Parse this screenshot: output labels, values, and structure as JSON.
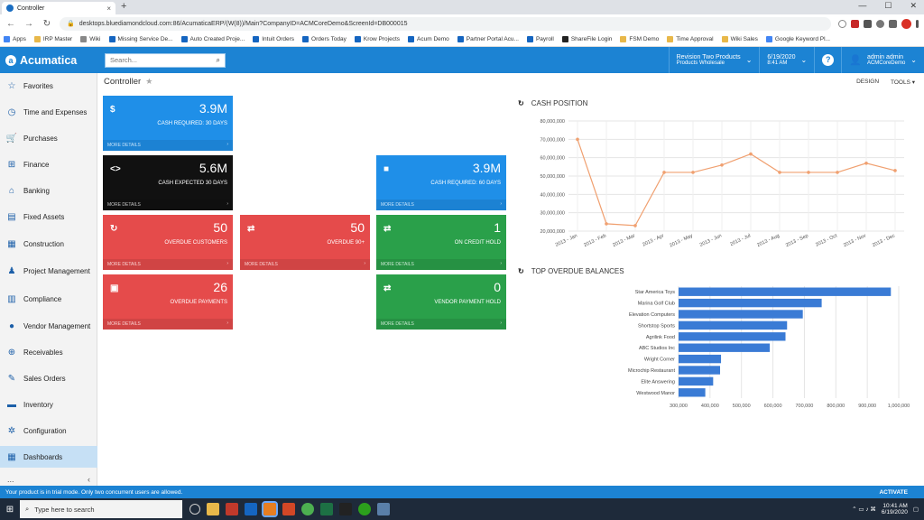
{
  "browser": {
    "tab_title": "Controller",
    "new_tab": "+",
    "address": "desktops.bluediamondcloud.com:86/AcumaticaERP/(W(8))/Main?CompanyID=ACMCoreDemo&ScreenId=DB000015",
    "bookmarks": [
      "Apps",
      "IRP Master",
      "Wiki",
      "Missing Service De...",
      "Auto Created Proje...",
      "Intuit Orders",
      "Orders Today",
      "Krow Projects",
      "Acum Demo",
      "Partner Portal Acu...",
      "Payroll",
      "ShareFile Login",
      "FSM Demo",
      "Time Approval",
      "Wiki Sales",
      "Google Keyword Pl..."
    ]
  },
  "header": {
    "logo": "Acumatica",
    "search_placeholder": "Search...",
    "company_line1": "Revision Two Products",
    "company_line2": "Products Wholesale",
    "date": "6/19/2020",
    "time": "8:41 AM",
    "help": "?",
    "user_name": "admin admin",
    "user_company": "ACMCoreDemo"
  },
  "sidebar": {
    "items": [
      {
        "label": "Favorites",
        "icon": "☆"
      },
      {
        "label": "Time and Expenses",
        "icon": "◷"
      },
      {
        "label": "Purchases",
        "icon": "🛒"
      },
      {
        "label": "Finance",
        "icon": "⊞"
      },
      {
        "label": "Banking",
        "icon": "⌂"
      },
      {
        "label": "Fixed Assets",
        "icon": "▤"
      },
      {
        "label": "Construction",
        "icon": "▦"
      },
      {
        "label": "Project Management",
        "icon": "♟"
      },
      {
        "label": "Compliance",
        "icon": "▥"
      },
      {
        "label": "Vendor Management",
        "icon": "●"
      },
      {
        "label": "Receivables",
        "icon": "⊕"
      },
      {
        "label": "Sales Orders",
        "icon": "✎"
      },
      {
        "label": "Inventory",
        "icon": "▬"
      },
      {
        "label": "Configuration",
        "icon": "✲"
      },
      {
        "label": "Dashboards",
        "icon": "▦"
      }
    ],
    "more": "...",
    "collapse": "‹"
  },
  "page": {
    "title": "Controller",
    "design": "DESIGN",
    "tools": "TOOLS ▾"
  },
  "tiles": [
    {
      "icon": "$",
      "value": "3.9M",
      "label": "CASH REQUIRED: 30 DAYS",
      "footer": "MORE DETAILS",
      "color": "blue"
    },
    {
      "icon": "<>",
      "value": "5.6M",
      "label": "CASH EXPECTED 30 DAYS",
      "footer": "MORE DETAILS",
      "color": "black"
    },
    {
      "icon": "■",
      "value": "3.9M",
      "label": "CASH REQUIRED: 60 DAYS",
      "footer": "MORE DETAILS",
      "color": "blue"
    },
    {
      "icon": "↻",
      "value": "50",
      "label": "OVERDUE CUSTOMERS",
      "footer": "MORE DETAILS",
      "color": "red"
    },
    {
      "icon": "⇄",
      "value": "50",
      "label": "OVERDUE 90+",
      "footer": "MORE DETAILS",
      "color": "red"
    },
    {
      "icon": "⇄",
      "value": "1",
      "label": "ON CREDIT HOLD",
      "footer": "MORE DETAILS",
      "color": "green"
    },
    {
      "icon": "▣",
      "value": "26",
      "label": "OVERDUE PAYMENTS",
      "footer": "MORE DETAILS",
      "color": "red"
    },
    {
      "icon": "⇄",
      "value": "0",
      "label": "VENDOR PAYMENT HOLD",
      "footer": "MORE DETAILS",
      "color": "green"
    }
  ],
  "chart_data": [
    {
      "type": "line",
      "title": "CASH POSITION",
      "categories": [
        "2013 - Jan",
        "2013 - Feb",
        "2013 - Mar",
        "2013 - Apr",
        "2013 - May",
        "2013 - Jun",
        "2013 - Jul",
        "2013 - Aug",
        "2013 - Sep",
        "2013 - Oct",
        "2013 - Nov",
        "2013 - Dec"
      ],
      "values": [
        70000000,
        24000000,
        23000000,
        52000000,
        52000000,
        56000000,
        62000000,
        52000000,
        52000000,
        52000000,
        57000000,
        53000000
      ],
      "ylim": [
        20000000,
        80000000
      ],
      "yticks": [
        20000000,
        30000000,
        40000000,
        50000000,
        60000000,
        70000000,
        80000000
      ],
      "ytick_labels": [
        "20,000,000",
        "30,000,000",
        "40,000,000",
        "50,000,000",
        "60,000,000",
        "70,000,000",
        "80,000,000"
      ],
      "color": "#f0a070",
      "grid": true
    },
    {
      "type": "bar",
      "orientation": "horizontal",
      "title": "TOP OVERDUE BALANCES",
      "categories": [
        "Star America Toys",
        "Marina Golf Club",
        "Elevation Computers",
        "Shortstop Sports",
        "Agrilink Food",
        "ABC Studios Inc",
        "Wright Corner",
        "Microchip Restaurant",
        "Elite Answering",
        "Westwood Manor"
      ],
      "values": [
        975000,
        755000,
        695000,
        645000,
        640000,
        590000,
        435000,
        432000,
        410000,
        385000
      ],
      "xlim": [
        300000,
        1000000
      ],
      "xticks": [
        300000,
        400000,
        500000,
        600000,
        700000,
        800000,
        900000,
        1000000
      ],
      "xtick_labels": [
        "300,000",
        "400,000",
        "500,000",
        "600,000",
        "700,000",
        "800,000",
        "900,000",
        "1,000,000"
      ],
      "color": "#3a7bd5",
      "grid": true
    }
  ],
  "status": {
    "trial_message": "Your product is in trial mode. Only two concurrent users are allowed.",
    "activate": "ACTIVATE"
  },
  "taskbar": {
    "search_placeholder": "Type here to search",
    "time": "10:41 AM",
    "date": "6/19/2020"
  }
}
